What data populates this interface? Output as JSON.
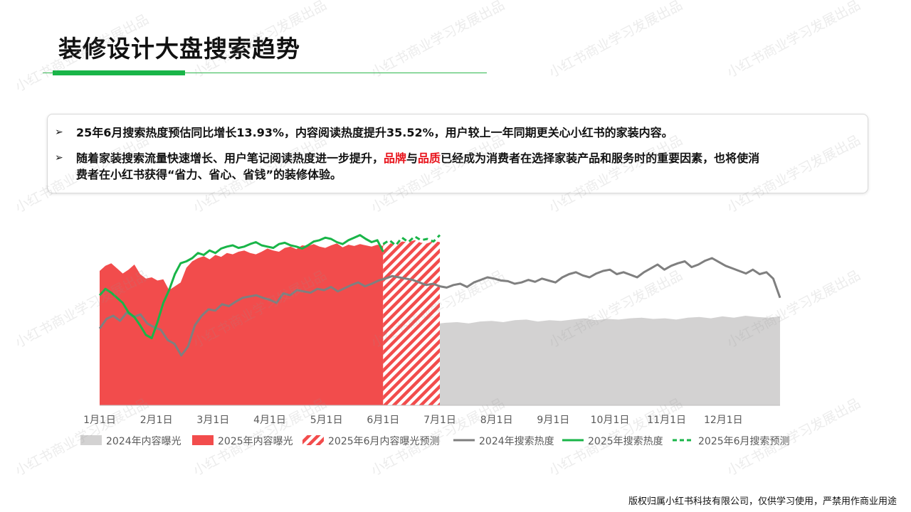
{
  "page": {
    "title": "装修设计大盘搜索趋势",
    "footer": "版权归属小红书科技有限公司，仅供学习使用，严禁用作商业用途",
    "watermark": "小红书商业学习发展出品"
  },
  "bullets": {
    "b1": "25年6月搜索热度预估同比增长13.93%，内容阅读热度提升35.52%，用户较上一年同期更关心小红书的家装内容。",
    "b2_pre": "随着家装搜索流量快速增长、用户笔记阅读热度进一步提升，",
    "b2_red1": "品牌",
    "b2_mid": "与",
    "b2_red2": "品质",
    "b2_post": "已经成为消费者在选择家装产品和服务时的重要因素，也将使消",
    "b2_line2": "费者在小红书获得“省力、省心、省钱”的装修体验。",
    "arrow": "➢"
  },
  "chart_data": {
    "type": "area",
    "x_start": "1月1日",
    "x_end": "12月31日",
    "tick_labels": [
      "1月1日",
      "2月1日",
      "3月1日",
      "4月1日",
      "5月1日",
      "6月1日",
      "7月1日",
      "8月1日",
      "9月1日",
      "10月1日",
      "11月1日",
      "12月1日"
    ],
    "y_axis": "hidden",
    "series": [
      {
        "name": "2024年内容曝光",
        "kind": "area",
        "color": "#d3d2d2",
        "values": [
          110,
          112,
          108,
          111,
          113,
          110,
          112,
          109,
          108,
          111,
          110,
          112,
          113,
          111,
          108,
          110,
          112,
          115,
          113,
          116,
          118,
          120,
          122,
          121,
          123,
          125,
          124,
          126,
          128,
          127,
          129,
          130,
          128,
          131,
          132,
          130,
          133,
          134,
          131,
          133,
          132,
          134,
          136,
          133,
          135,
          134,
          136,
          137,
          135,
          136,
          134,
          137,
          138,
          136,
          139,
          137,
          140,
          138,
          137,
          139
        ]
      },
      {
        "name": "2025年内容曝光",
        "kind": "area",
        "color": "#f24c4c",
        "values": [
          210,
          218,
          222,
          214,
          206,
          212,
          220,
          205,
          198,
          200,
          195,
          197,
          180,
          186,
          192,
          215,
          225,
          230,
          233,
          228,
          235,
          232,
          238,
          236,
          240,
          242,
          238,
          236,
          240,
          245,
          242,
          240,
          246,
          248,
          244,
          250,
          249,
          252,
          248,
          246,
          250,
          253,
          247,
          251,
          249,
          252,
          250,
          248,
          251,
          249
        ]
      },
      {
        "name": "2025年6月内容曝光预测",
        "kind": "area",
        "pattern": "hatch",
        "color": "#f24c4c",
        "values": [
          252,
          254,
          250,
          256,
          255,
          258,
          254,
          253,
          257,
          255
        ]
      },
      {
        "name": "2024年搜索热度",
        "kind": "line",
        "color": "#7f7f7f",
        "values": [
          120,
          135,
          140,
          132,
          145,
          138,
          142,
          128,
          122,
          118,
          102,
          96,
          78,
          92,
          125,
          140,
          150,
          148,
          158,
          155,
          162,
          168,
          170,
          172,
          168,
          165,
          160,
          175,
          172,
          180,
          178,
          176,
          182,
          180,
          185,
          178,
          183,
          188,
          192,
          186,
          190,
          195,
          198,
          202,
          200,
          198,
          196,
          192,
          188,
          190,
          186,
          184,
          188,
          190,
          185,
          192,
          196,
          200,
          198,
          195,
          194,
          190,
          192,
          196,
          193,
          198,
          195,
          192,
          200,
          205,
          208,
          203,
          200,
          206,
          210,
          212,
          205,
          208,
          204,
          200,
          208,
          214,
          220,
          212,
          218,
          222,
          225,
          216,
          220,
          226,
          230,
          224,
          218,
          214,
          210,
          206,
          212,
          205,
          208,
          198,
          168
        ]
      },
      {
        "name": "2025年搜索热度",
        "kind": "line",
        "color": "#19b548",
        "values": [
          172,
          182,
          176,
          168,
          160,
          145,
          138,
          125,
          110,
          105,
          130,
          160,
          180,
          205,
          222,
          225,
          230,
          238,
          235,
          242,
          238,
          245,
          248,
          250,
          246,
          248,
          252,
          255,
          250,
          248,
          246,
          252,
          254,
          250,
          248,
          245,
          250,
          256,
          258,
          262,
          260,
          255,
          252,
          258,
          262,
          266,
          260,
          255,
          258,
          240
        ]
      },
      {
        "name": "2025年6月搜索预测",
        "kind": "line",
        "dash": true,
        "color": "#19b548",
        "values": [
          252,
          258,
          250,
          262,
          255,
          264,
          258,
          260,
          256,
          266
        ]
      }
    ],
    "legend_position": "bottom",
    "grid": false
  }
}
